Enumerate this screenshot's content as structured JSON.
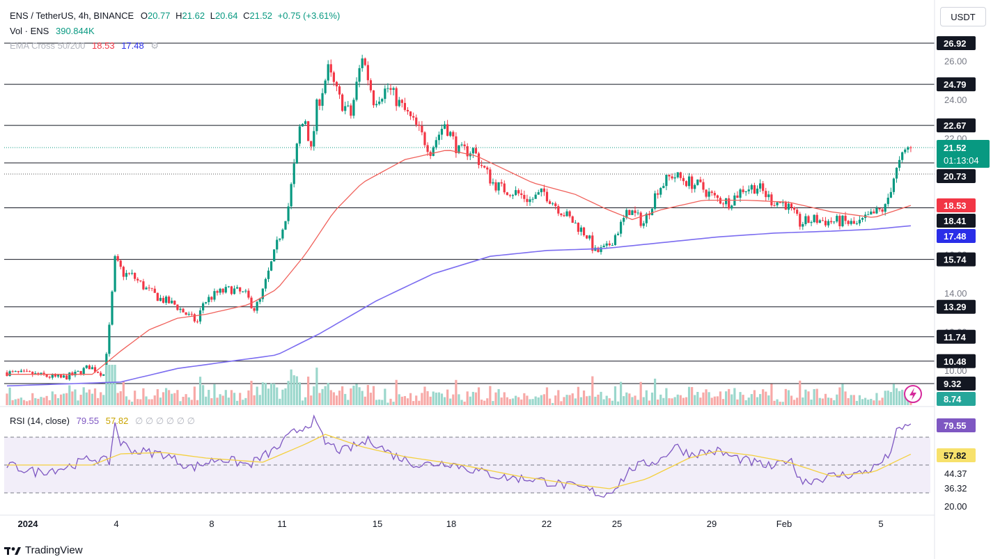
{
  "header": {
    "symbol_title": "ENS / TetherUS, 4h, BINANCE",
    "open_label": "O",
    "open": "20.77",
    "high_label": "H",
    "high": "21.62",
    "low_label": "L",
    "low": "20.64",
    "close_label": "C",
    "close": "21.52",
    "change": "+0.75 (+3.61%)",
    "vol_label": "Vol · ENS",
    "vol_value": "390.844K",
    "ema_label": "EMA Cross 50/200",
    "ema50": "18.53",
    "ema200": "17.48",
    "ema_settings_glyph": "⚙",
    "rsi_label": "RSI (14, close)",
    "rsi_value": "79.55",
    "rsi_ma_value": "57.82",
    "rsi_dims": "∅ ∅ ∅ ∅ ∅ ∅"
  },
  "toolbar": {
    "currency_button": "USDT"
  },
  "footer": {
    "brand": "TradingView"
  },
  "colors": {
    "up": "#089981",
    "down": "#f23645",
    "ema50": "#f0605a",
    "ema200": "#7b6cf0",
    "rsi": "#7e57c2",
    "rsi_ma": "#f4d03f",
    "rsi_band": "#ede7f6"
  },
  "chart_data": [
    {
      "type": "candlestick",
      "pair": "ENS/USDT",
      "interval": "4h",
      "x_ticks": [
        "2024",
        "4",
        "8",
        "11",
        "15",
        "18",
        "22",
        "25",
        "29",
        "Feb",
        "5"
      ],
      "y_ticks": [
        "26.00",
        "24.00",
        "22.00",
        "16.00",
        "14.00",
        "12.00",
        "10.00"
      ],
      "horizontal_levels": [
        26.92,
        24.79,
        22.67,
        20.73,
        18.41,
        15.74,
        13.29,
        11.74,
        10.48,
        9.32
      ],
      "level_labels": [
        "26.92",
        "24.79",
        "22.67",
        "20.73",
        "18.41",
        "15.74",
        "13.29",
        "11.74",
        "10.48",
        "9.32"
      ],
      "last_price": {
        "value": 21.52,
        "label": "21.52",
        "countdown": "01:13:04"
      },
      "ema50_label": "18.53",
      "ema200_label": "17.48",
      "volume_label": "8.74",
      "price_path_keypoints": [
        [
          0,
          9.9
        ],
        [
          10,
          9.8
        ],
        [
          20,
          9.6
        ],
        [
          25,
          9.8
        ],
        [
          30,
          10.2
        ],
        [
          35,
          9.8
        ],
        [
          37,
          12.2
        ],
        [
          39,
          15.7
        ],
        [
          42,
          15.0
        ],
        [
          45,
          14.9
        ],
        [
          50,
          14.2
        ],
        [
          55,
          13.7
        ],
        [
          60,
          13.4
        ],
        [
          65,
          12.8
        ],
        [
          68,
          12.5
        ],
        [
          70,
          13.5
        ],
        [
          75,
          14.0
        ],
        [
          80,
          14.2
        ],
        [
          85,
          13.9
        ],
        [
          88,
          13.2
        ],
        [
          90,
          13.6
        ],
        [
          95,
          16.0
        ],
        [
          100,
          18.5
        ],
        [
          102,
          20.5
        ],
        [
          104,
          22.5
        ],
        [
          106,
          23.0
        ],
        [
          108,
          21.3
        ],
        [
          110,
          23.6
        ],
        [
          114,
          25.5
        ],
        [
          118,
          24.0
        ],
        [
          122,
          23.2
        ],
        [
          126,
          26.3
        ],
        [
          130,
          24.0
        ],
        [
          135,
          24.6
        ],
        [
          140,
          23.6
        ],
        [
          145,
          22.6
        ],
        [
          150,
          21.4
        ],
        [
          155,
          22.8
        ],
        [
          160,
          21.3
        ],
        [
          165,
          21.4
        ],
        [
          168,
          20.6
        ],
        [
          172,
          19.7
        ],
        [
          175,
          19.4
        ],
        [
          180,
          19.2
        ],
        [
          185,
          18.8
        ],
        [
          190,
          19.2
        ],
        [
          195,
          18.4
        ],
        [
          200,
          17.7
        ],
        [
          205,
          17.0
        ],
        [
          208,
          16.1
        ],
        [
          212,
          16.3
        ],
        [
          215,
          17.0
        ],
        [
          220,
          18.3
        ],
        [
          225,
          17.6
        ],
        [
          230,
          19.4
        ],
        [
          235,
          20.1
        ],
        [
          240,
          19.8
        ],
        [
          245,
          19.5
        ],
        [
          250,
          18.9
        ],
        [
          255,
          18.7
        ],
        [
          260,
          19.4
        ],
        [
          265,
          19.5
        ],
        [
          270,
          18.8
        ],
        [
          275,
          18.6
        ],
        [
          280,
          17.6
        ],
        [
          285,
          17.8
        ],
        [
          290,
          17.7
        ],
        [
          295,
          17.7
        ],
        [
          300,
          17.5
        ],
        [
          305,
          18.0
        ],
        [
          310,
          18.4
        ],
        [
          313,
          20.0
        ],
        [
          316,
          21.0
        ],
        [
          318,
          21.52
        ]
      ],
      "ema50_keypoints": [
        [
          0,
          9.8
        ],
        [
          30,
          9.8
        ],
        [
          40,
          11.0
        ],
        [
          50,
          12.1
        ],
        [
          60,
          12.7
        ],
        [
          70,
          12.9
        ],
        [
          85,
          13.4
        ],
        [
          95,
          14.2
        ],
        [
          105,
          16.0
        ],
        [
          115,
          18.2
        ],
        [
          125,
          19.7
        ],
        [
          140,
          20.9
        ],
        [
          155,
          21.4
        ],
        [
          165,
          21.1
        ],
        [
          175,
          20.4
        ],
        [
          185,
          19.7
        ],
        [
          200,
          19.1
        ],
        [
          210,
          18.4
        ],
        [
          220,
          17.8
        ],
        [
          230,
          18.3
        ],
        [
          245,
          18.8
        ],
        [
          260,
          18.8
        ],
        [
          275,
          18.7
        ],
        [
          290,
          18.2
        ],
        [
          305,
          17.9
        ],
        [
          318,
          18.53
        ]
      ],
      "ema200_keypoints": [
        [
          0,
          9.2
        ],
        [
          40,
          9.4
        ],
        [
          60,
          10.1
        ],
        [
          80,
          10.5
        ],
        [
          95,
          10.8
        ],
        [
          110,
          11.9
        ],
        [
          130,
          13.6
        ],
        [
          150,
          15.0
        ],
        [
          170,
          15.9
        ],
        [
          190,
          16.2
        ],
        [
          210,
          16.3
        ],
        [
          230,
          16.6
        ],
        [
          250,
          16.9
        ],
        [
          270,
          17.1
        ],
        [
          290,
          17.2
        ],
        [
          305,
          17.3
        ],
        [
          318,
          17.48
        ]
      ],
      "rsi": {
        "label": "RSI (14, close)",
        "value": 79.55,
        "ma_value": 57.82,
        "levels": [
          70,
          50,
          30
        ],
        "y_ticks": [
          "44.37",
          "36.32",
          "20.00"
        ],
        "rsi_keypoints": [
          [
            0,
            50
          ],
          [
            10,
            45
          ],
          [
            20,
            48
          ],
          [
            30,
            55
          ],
          [
            36,
            52
          ],
          [
            38,
            80
          ],
          [
            40,
            66
          ],
          [
            45,
            60
          ],
          [
            55,
            58
          ],
          [
            65,
            48
          ],
          [
            75,
            55
          ],
          [
            85,
            50
          ],
          [
            95,
            62
          ],
          [
            100,
            72
          ],
          [
            108,
            82
          ],
          [
            112,
            66
          ],
          [
            118,
            60
          ],
          [
            128,
            68
          ],
          [
            135,
            58
          ],
          [
            145,
            50
          ],
          [
            155,
            52
          ],
          [
            165,
            46
          ],
          [
            175,
            41
          ],
          [
            185,
            40
          ],
          [
            195,
            36
          ],
          [
            205,
            32
          ],
          [
            210,
            28
          ],
          [
            215,
            36
          ],
          [
            220,
            48
          ],
          [
            230,
            54
          ],
          [
            235,
            64
          ],
          [
            240,
            58
          ],
          [
            250,
            60
          ],
          [
            255,
            56
          ],
          [
            262,
            52
          ],
          [
            270,
            48
          ],
          [
            275,
            55
          ],
          [
            280,
            38
          ],
          [
            290,
            42
          ],
          [
            300,
            44
          ],
          [
            305,
            48
          ],
          [
            310,
            56
          ],
          [
            313,
            73
          ],
          [
            318,
            79.55
          ]
        ],
        "ma_keypoints": [
          [
            0,
            50
          ],
          [
            30,
            50
          ],
          [
            40,
            58
          ],
          [
            55,
            59
          ],
          [
            70,
            55
          ],
          [
            90,
            52
          ],
          [
            105,
            65
          ],
          [
            112,
            72
          ],
          [
            125,
            63
          ],
          [
            140,
            56
          ],
          [
            160,
            50
          ],
          [
            180,
            42
          ],
          [
            200,
            36
          ],
          [
            212,
            33
          ],
          [
            225,
            40
          ],
          [
            240,
            55
          ],
          [
            250,
            60
          ],
          [
            262,
            57
          ],
          [
            275,
            52
          ],
          [
            290,
            42
          ],
          [
            305,
            45
          ],
          [
            318,
            57.82
          ]
        ]
      }
    }
  ]
}
